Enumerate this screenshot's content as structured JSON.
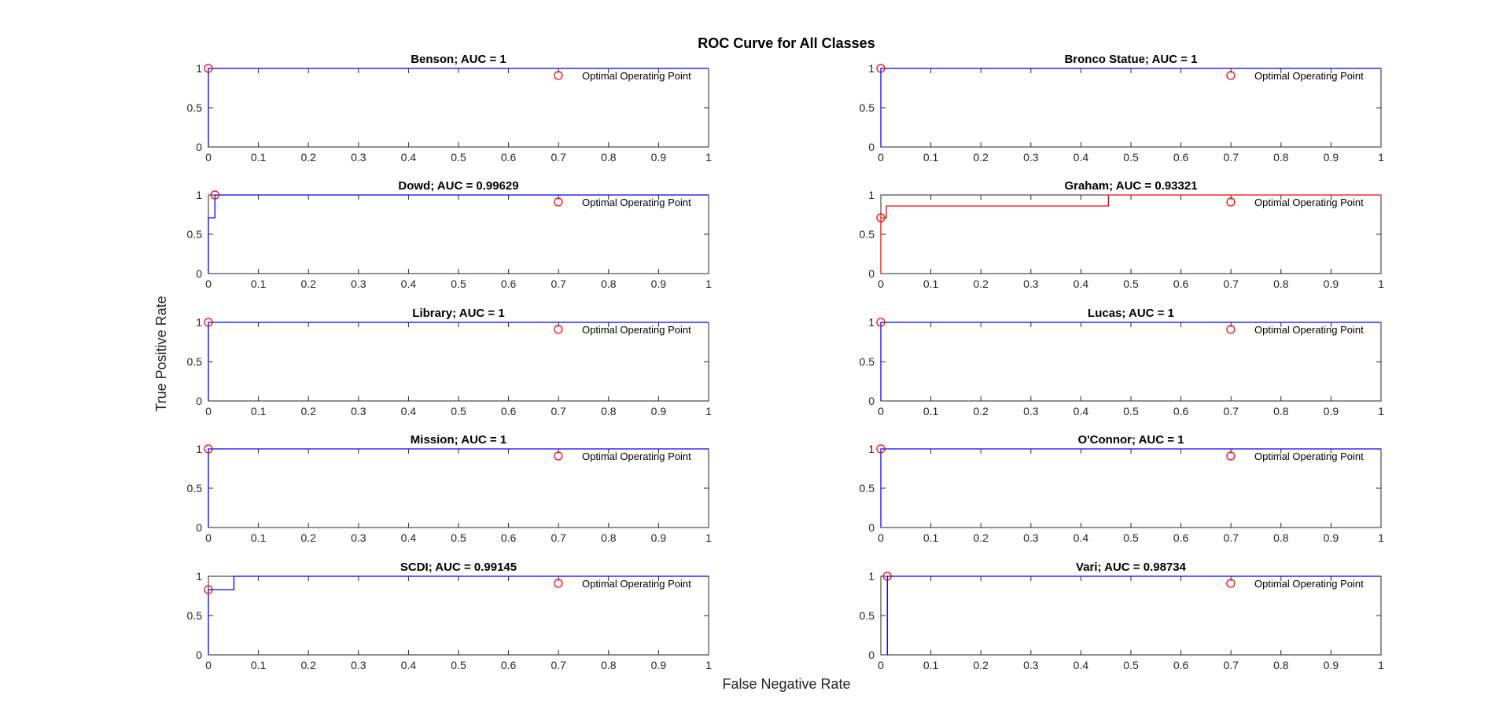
{
  "figure": {
    "title": "ROC Curve for All Classes",
    "xlabel": "False Negative Rate",
    "ylabel": "True Positive Rate"
  },
  "chart_data": [
    {
      "type": "line",
      "title": "Benson; AUC = 1",
      "xlim": [
        0,
        1
      ],
      "ylim": [
        0,
        1
      ],
      "x_ticks": [
        "0",
        "0.1",
        "0.2",
        "0.3",
        "0.4",
        "0.5",
        "0.6",
        "0.7",
        "0.8",
        "0.9",
        "1"
      ],
      "y_ticks": [
        "0",
        "0.5",
        "1"
      ],
      "series": [
        {
          "color": "#0000ff",
          "x": [
            0,
            0,
            1
          ],
          "y": [
            0,
            1,
            1
          ]
        }
      ],
      "optimal_point": {
        "x": 0,
        "y": 1,
        "color": "#ff0000"
      },
      "legend": {
        "label": "Optimal Operating Point",
        "placement": "top-right"
      }
    },
    {
      "type": "line",
      "title": "Bronco Statue; AUC = 1",
      "xlim": [
        0,
        1
      ],
      "ylim": [
        0,
        1
      ],
      "x_ticks": [
        "0",
        "0.1",
        "0.2",
        "0.3",
        "0.4",
        "0.5",
        "0.6",
        "0.7",
        "0.8",
        "0.9",
        "1"
      ],
      "y_ticks": [
        "0",
        "0.5",
        "1"
      ],
      "series": [
        {
          "color": "#0000ff",
          "x": [
            0,
            0,
            1
          ],
          "y": [
            0,
            1,
            1
          ]
        }
      ],
      "optimal_point": {
        "x": 0,
        "y": 1,
        "color": "#ff0000"
      },
      "legend": {
        "label": "Optimal Operating Point",
        "placement": "top-right"
      }
    },
    {
      "type": "line",
      "title": "Dowd; AUC = 0.99629",
      "xlim": [
        0,
        1
      ],
      "ylim": [
        0,
        1
      ],
      "x_ticks": [
        "0",
        "0.1",
        "0.2",
        "0.3",
        "0.4",
        "0.5",
        "0.6",
        "0.7",
        "0.8",
        "0.9",
        "1"
      ],
      "y_ticks": [
        "0",
        "0.5",
        "1"
      ],
      "series": [
        {
          "color": "#0000ff",
          "x": [
            0,
            0,
            0.013,
            0.013,
            1
          ],
          "y": [
            0,
            0.71,
            0.71,
            1,
            1
          ]
        }
      ],
      "optimal_point": {
        "x": 0.013,
        "y": 1,
        "color": "#ff0000"
      },
      "legend": {
        "label": "Optimal Operating Point",
        "placement": "top-right"
      }
    },
    {
      "type": "line",
      "title": "Graham; AUC = 0.93321",
      "xlim": [
        0,
        1
      ],
      "ylim": [
        0,
        1
      ],
      "x_ticks": [
        "0",
        "0.1",
        "0.2",
        "0.3",
        "0.4",
        "0.5",
        "0.6",
        "0.7",
        "0.8",
        "0.9",
        "1"
      ],
      "y_ticks": [
        "0",
        "0.5",
        "1"
      ],
      "series": [
        {
          "color": "#ff0000",
          "x": [
            0,
            0,
            0.011,
            0.011,
            0.455,
            0.455,
            1
          ],
          "y": [
            0,
            0.71,
            0.71,
            0.86,
            0.86,
            1,
            1
          ]
        }
      ],
      "optimal_point": {
        "x": 0,
        "y": 0.71,
        "color": "#ff0000"
      },
      "legend": {
        "label": "Optimal Operating Point",
        "placement": "top-right"
      }
    },
    {
      "type": "line",
      "title": "Library; AUC = 1",
      "xlim": [
        0,
        1
      ],
      "ylim": [
        0,
        1
      ],
      "x_ticks": [
        "0",
        "0.1",
        "0.2",
        "0.3",
        "0.4",
        "0.5",
        "0.6",
        "0.7",
        "0.8",
        "0.9",
        "1"
      ],
      "y_ticks": [
        "0",
        "0.5",
        "1"
      ],
      "series": [
        {
          "color": "#0000ff",
          "x": [
            0,
            0,
            1
          ],
          "y": [
            0,
            1,
            1
          ]
        }
      ],
      "optimal_point": {
        "x": 0,
        "y": 1,
        "color": "#ff0000"
      },
      "legend": {
        "label": "Optimal Operating Point",
        "placement": "top-right"
      }
    },
    {
      "type": "line",
      "title": "Lucas; AUC = 1",
      "xlim": [
        0,
        1
      ],
      "ylim": [
        0,
        1
      ],
      "x_ticks": [
        "0",
        "0.1",
        "0.2",
        "0.3",
        "0.4",
        "0.5",
        "0.6",
        "0.7",
        "0.8",
        "0.9",
        "1"
      ],
      "y_ticks": [
        "0",
        "0.5",
        "1"
      ],
      "series": [
        {
          "color": "#0000ff",
          "x": [
            0,
            0,
            1
          ],
          "y": [
            0,
            1,
            1
          ]
        }
      ],
      "optimal_point": {
        "x": 0,
        "y": 1,
        "color": "#ff0000"
      },
      "legend": {
        "label": "Optimal Operating Point",
        "placement": "top-right"
      }
    },
    {
      "type": "line",
      "title": "Mission; AUC = 1",
      "xlim": [
        0,
        1
      ],
      "ylim": [
        0,
        1
      ],
      "x_ticks": [
        "0",
        "0.1",
        "0.2",
        "0.3",
        "0.4",
        "0.5",
        "0.6",
        "0.7",
        "0.8",
        "0.9",
        "1"
      ],
      "y_ticks": [
        "0",
        "0.5",
        "1"
      ],
      "series": [
        {
          "color": "#0000ff",
          "x": [
            0,
            0,
            1
          ],
          "y": [
            0,
            1,
            1
          ]
        }
      ],
      "optimal_point": {
        "x": 0,
        "y": 1,
        "color": "#ff0000"
      },
      "legend": {
        "label": "Optimal Operating Point",
        "placement": "top-right"
      }
    },
    {
      "type": "line",
      "title": "O'Connor; AUC = 1",
      "xlim": [
        0,
        1
      ],
      "ylim": [
        0,
        1
      ],
      "x_ticks": [
        "0",
        "0.1",
        "0.2",
        "0.3",
        "0.4",
        "0.5",
        "0.6",
        "0.7",
        "0.8",
        "0.9",
        "1"
      ],
      "y_ticks": [
        "0",
        "0.5",
        "1"
      ],
      "series": [
        {
          "color": "#0000ff",
          "x": [
            0,
            0,
            1
          ],
          "y": [
            0,
            1,
            1
          ]
        }
      ],
      "optimal_point": {
        "x": 0,
        "y": 1,
        "color": "#ff0000"
      },
      "legend": {
        "label": "Optimal Operating Point",
        "placement": "top-right"
      }
    },
    {
      "type": "line",
      "title": "SCDI; AUC = 0.99145",
      "xlim": [
        0,
        1
      ],
      "ylim": [
        0,
        1
      ],
      "x_ticks": [
        "0",
        "0.1",
        "0.2",
        "0.3",
        "0.4",
        "0.5",
        "0.6",
        "0.7",
        "0.8",
        "0.9",
        "1"
      ],
      "y_ticks": [
        "0",
        "0.5",
        "1"
      ],
      "series": [
        {
          "color": "#0000ff",
          "x": [
            0,
            0,
            0.051,
            0.051,
            1
          ],
          "y": [
            0,
            0.83,
            0.83,
            1,
            1
          ]
        }
      ],
      "optimal_point": {
        "x": 0,
        "y": 0.83,
        "color": "#ff0000"
      },
      "legend": {
        "label": "Optimal Operating Point",
        "placement": "top-right"
      }
    },
    {
      "type": "line",
      "title": "Vari; AUC = 0.98734",
      "xlim": [
        0,
        1
      ],
      "ylim": [
        0,
        1
      ],
      "x_ticks": [
        "0",
        "0.1",
        "0.2",
        "0.3",
        "0.4",
        "0.5",
        "0.6",
        "0.7",
        "0.8",
        "0.9",
        "1"
      ],
      "y_ticks": [
        "0",
        "0.5",
        "1"
      ],
      "series": [
        {
          "color": "#0000ff",
          "x": [
            0.013,
            0.013,
            1
          ],
          "y": [
            0,
            1,
            1
          ]
        }
      ],
      "optimal_point": {
        "x": 0.013,
        "y": 1,
        "color": "#ff0000"
      },
      "legend": {
        "label": "Optimal Operating Point",
        "placement": "top-right"
      }
    }
  ]
}
